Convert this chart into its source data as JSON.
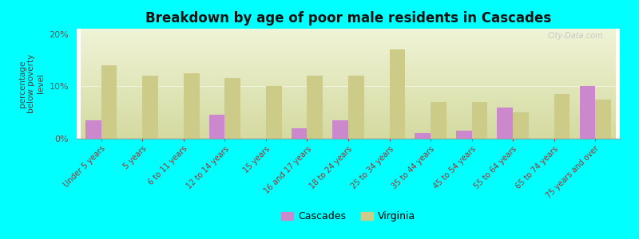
{
  "title": "Breakdown by age of poor male residents in Cascades",
  "ylabel": "percentage\nbelow poverty\nlevel",
  "background_color": "#00FFFF",
  "plot_bg_top": "#d4daa0",
  "plot_bg_bottom": "#f0f4d8",
  "categories": [
    "Under 5 years",
    "5 years",
    "6 to 11 years",
    "12 to 14 years",
    "15 years",
    "16 and 17 years",
    "18 to 24 years",
    "25 to 34 years",
    "35 to 44 years",
    "45 to 54 years",
    "55 to 64 years",
    "65 to 74 years",
    "75 years and over"
  ],
  "cascades_values": [
    3.5,
    0.0,
    0.0,
    4.5,
    0.0,
    2.0,
    3.5,
    0.0,
    1.0,
    1.5,
    6.0,
    0.0,
    10.0
  ],
  "virginia_values": [
    14.0,
    12.0,
    12.5,
    11.5,
    10.0,
    12.0,
    12.0,
    17.0,
    7.0,
    7.0,
    5.0,
    8.5,
    7.5
  ],
  "cascades_color": "#cc88cc",
  "virginia_color": "#cccc88",
  "ylim": [
    0,
    21
  ],
  "yticks": [
    0,
    10,
    20
  ],
  "ytick_labels": [
    "0%",
    "10%",
    "20%"
  ],
  "watermark": "City-Data.com"
}
